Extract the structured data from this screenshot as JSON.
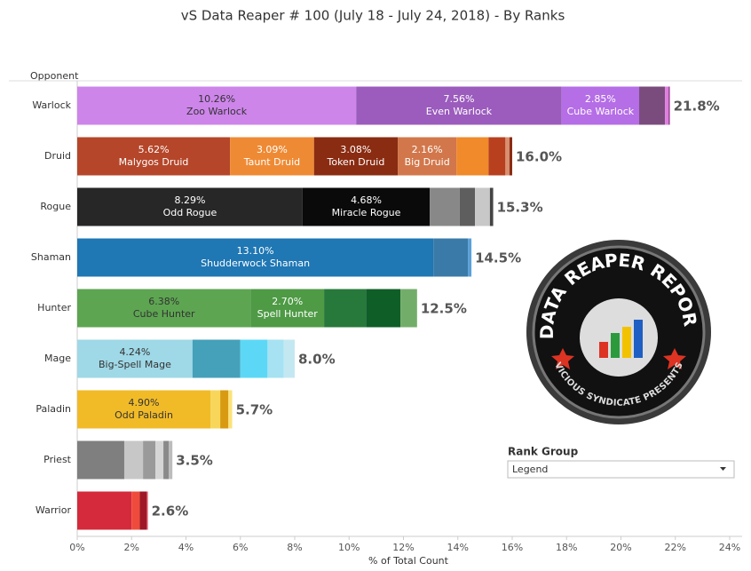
{
  "chart_data": {
    "type": "stacked_bar",
    "title": "vS Data Reaper #  100 (July 18 - July 24, 2018) - By Ranks",
    "y_header": "Opponent",
    "x_label": "% of Total Count",
    "xlim": [
      0,
      24
    ],
    "xticks": [
      {
        "value": 0,
        "label": "0%"
      },
      {
        "value": 2,
        "label": "2%"
      },
      {
        "value": 4,
        "label": "4%"
      },
      {
        "value": 6,
        "label": "6%"
      },
      {
        "value": 8,
        "label": "8%"
      },
      {
        "value": 10,
        "label": "10%"
      },
      {
        "value": 12,
        "label": "12%"
      },
      {
        "value": 14,
        "label": "14%"
      },
      {
        "value": 16,
        "label": "16%"
      },
      {
        "value": 18,
        "label": "18%"
      },
      {
        "value": 20,
        "label": "20%"
      },
      {
        "value": 22,
        "label": "22%"
      },
      {
        "value": 24,
        "label": "24%"
      }
    ],
    "categories": [
      "Warlock",
      "Druid",
      "Rogue",
      "Shaman",
      "Hunter",
      "Mage",
      "Paladin",
      "Priest",
      "Warrior"
    ],
    "bars": [
      {
        "total": {
          "value": 21.8,
          "label": "21.8%"
        },
        "segments": [
          {
            "name": "Zoo Warlock",
            "value": 10.26,
            "value_label": "10.26%",
            "color": "#cd85ea",
            "text_color": "#333333"
          },
          {
            "name": "Even Warlock",
            "value": 7.56,
            "value_label": "7.56%",
            "color": "#9b5cbd",
            "text_color": "#ffffff"
          },
          {
            "name": "Cube Warlock",
            "value": 2.85,
            "value_label": "2.85%",
            "color": "#b56ee6",
            "text_color": "#ffffff"
          },
          {
            "value": 0.95,
            "color": "#7a4c7e"
          },
          {
            "value": 0.12,
            "color": "#e07ee0"
          },
          {
            "value": 0.06,
            "color": "#a04a9a"
          }
        ]
      },
      {
        "total": {
          "value": 16.0,
          "label": "16.0%"
        },
        "segments": [
          {
            "name": "Malygos Druid",
            "value": 5.62,
            "value_label": "5.62%",
            "color": "#b5462a",
            "text_color": "#ffffff"
          },
          {
            "name": "Taunt Druid",
            "value": 3.09,
            "value_label": "3.09%",
            "color": "#ef8a34",
            "text_color": "#ffffff"
          },
          {
            "name": "Token Druid",
            "value": 3.08,
            "value_label": "3.08%",
            "color": "#8a2c12",
            "text_color": "#ffffff"
          },
          {
            "name": "Big Druid",
            "value": 2.16,
            "value_label": "2.16%",
            "color": "#d2774b",
            "text_color": "#ffffff"
          },
          {
            "value": 1.18,
            "color": "#f08a2a"
          },
          {
            "value": 0.62,
            "color": "#b8401e"
          },
          {
            "value": 0.15,
            "color": "#d89070"
          },
          {
            "value": 0.1,
            "color": "#8a2c12"
          }
        ]
      },
      {
        "total": {
          "value": 15.3,
          "label": "15.3%"
        },
        "segments": [
          {
            "name": "Odd Rogue",
            "value": 8.29,
            "value_label": "8.29%",
            "color": "#272727",
            "text_color": "#ffffff"
          },
          {
            "name": "Miracle Rogue",
            "value": 4.68,
            "value_label": "4.68%",
            "color": "#0a0a0a",
            "text_color": "#ffffff"
          },
          {
            "value": 1.1,
            "color": "#888888"
          },
          {
            "value": 0.56,
            "color": "#5e5e5e"
          },
          {
            "value": 0.55,
            "color": "#c8c8c8"
          },
          {
            "value": 0.12,
            "color": "#444444"
          }
        ]
      },
      {
        "total": {
          "value": 14.5,
          "label": "14.5%"
        },
        "segments": [
          {
            "name": "Shudderwock Shaman",
            "value": 13.1,
            "value_label": "13.10%",
            "color": "#1f77b4",
            "text_color": "#ffffff"
          },
          {
            "value": 1.27,
            "color": "#3a7aa8"
          },
          {
            "value": 0.13,
            "color": "#5aa0d8"
          }
        ]
      },
      {
        "total": {
          "value": 12.5,
          "label": "12.5%"
        },
        "segments": [
          {
            "name": "Cube Hunter",
            "value": 6.38,
            "value_label": "6.38%",
            "color": "#5ea552",
            "text_color": "#333333"
          },
          {
            "name": "Spell Hunter",
            "value": 2.7,
            "value_label": "2.70%",
            "color": "#4e9a45",
            "text_color": "#ffffff"
          },
          {
            "value": 1.54,
            "color": "#26793a"
          },
          {
            "value": 1.27,
            "color": "#0f5e27"
          },
          {
            "value": 0.61,
            "color": "#73ad6a"
          }
        ]
      },
      {
        "total": {
          "value": 8.0,
          "label": "8.0%"
        },
        "segments": [
          {
            "name": "Big-Spell Mage",
            "value": 4.24,
            "value_label": "4.24%",
            "color": "#9fd8e6",
            "text_color": "#333333"
          },
          {
            "value": 1.76,
            "color": "#45a0ba"
          },
          {
            "value": 1.0,
            "color": "#5cd8f6"
          },
          {
            "value": 0.6,
            "color": "#a6e2f2"
          },
          {
            "value": 0.4,
            "color": "#c4e8f2"
          }
        ]
      },
      {
        "total": {
          "value": 5.7,
          "label": "5.7%"
        },
        "segments": [
          {
            "name": "Odd Paladin",
            "value": 4.9,
            "value_label": "4.90%",
            "color": "#f1bb27",
            "text_color": "#333333"
          },
          {
            "value": 0.36,
            "color": "#f8d65a"
          },
          {
            "value": 0.3,
            "color": "#d89a10"
          },
          {
            "value": 0.14,
            "color": "#fbe27a"
          }
        ]
      },
      {
        "total": {
          "value": 3.5,
          "label": "3.5%"
        },
        "segments": [
          {
            "value": 1.73,
            "color": "#7f7f7f"
          },
          {
            "value": 0.69,
            "color": "#c7c7c7"
          },
          {
            "value": 0.46,
            "color": "#9a9a9a"
          },
          {
            "value": 0.29,
            "color": "#d6d6d6"
          },
          {
            "value": 0.2,
            "color": "#8a8a8a"
          },
          {
            "value": 0.13,
            "color": "#bcbcbc"
          }
        ]
      },
      {
        "total": {
          "value": 2.6,
          "label": "2.6%"
        },
        "segments": [
          {
            "value": 2.0,
            "color": "#d42a3c"
          },
          {
            "value": 0.3,
            "color": "#ef4b3c"
          },
          {
            "value": 0.26,
            "color": "#9e1828"
          },
          {
            "value": 0.04,
            "color": "#e06070"
          }
        ]
      }
    ],
    "legend": {
      "title": "Rank Group",
      "selected": "Legend"
    },
    "logo": {
      "title": "DATA REAPER REPORT",
      "subtitle": "VICIOUS SYNDICATE PRESENTS"
    }
  }
}
